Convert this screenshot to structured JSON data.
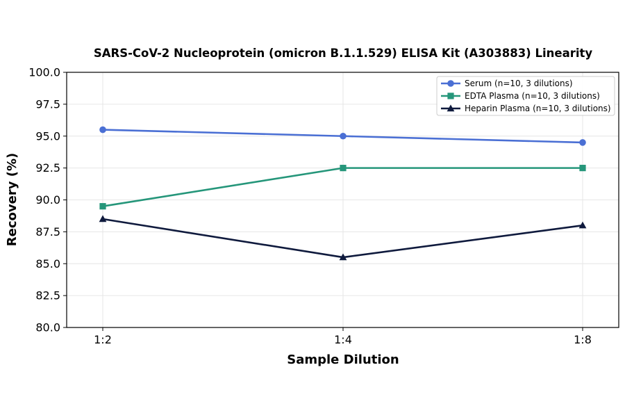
{
  "chart_data": {
    "type": "line",
    "title": "SARS-CoV-2 Nucleoprotein (omicron B.1.1.529) ELISA Kit (A303883) Linearity",
    "xlabel": "Sample Dilution",
    "ylabel": "Recovery (%)",
    "categories": [
      "1:2",
      "1:4",
      "1:8"
    ],
    "ylim": [
      80.0,
      100.0
    ],
    "yticks": [
      "80.0",
      "82.5",
      "85.0",
      "87.5",
      "90.0",
      "92.5",
      "95.0",
      "97.5",
      "100.0"
    ],
    "grid": true,
    "legend_position": "top-right",
    "series": [
      {
        "name": "Serum (n=10, 3 dilutions)",
        "values": [
          95.5,
          95.0,
          94.5
        ],
        "color": "#4a6fd4",
        "marker": "circle"
      },
      {
        "name": "EDTA Plasma (n=10, 3 dilutions)",
        "values": [
          89.5,
          92.5,
          92.5
        ],
        "color": "#25967a",
        "marker": "square"
      },
      {
        "name": "Heparin Plasma (n=10, 3 dilutions)",
        "values": [
          88.5,
          85.5,
          88.0
        ],
        "color": "#0f1a3d",
        "marker": "triangle"
      }
    ]
  }
}
